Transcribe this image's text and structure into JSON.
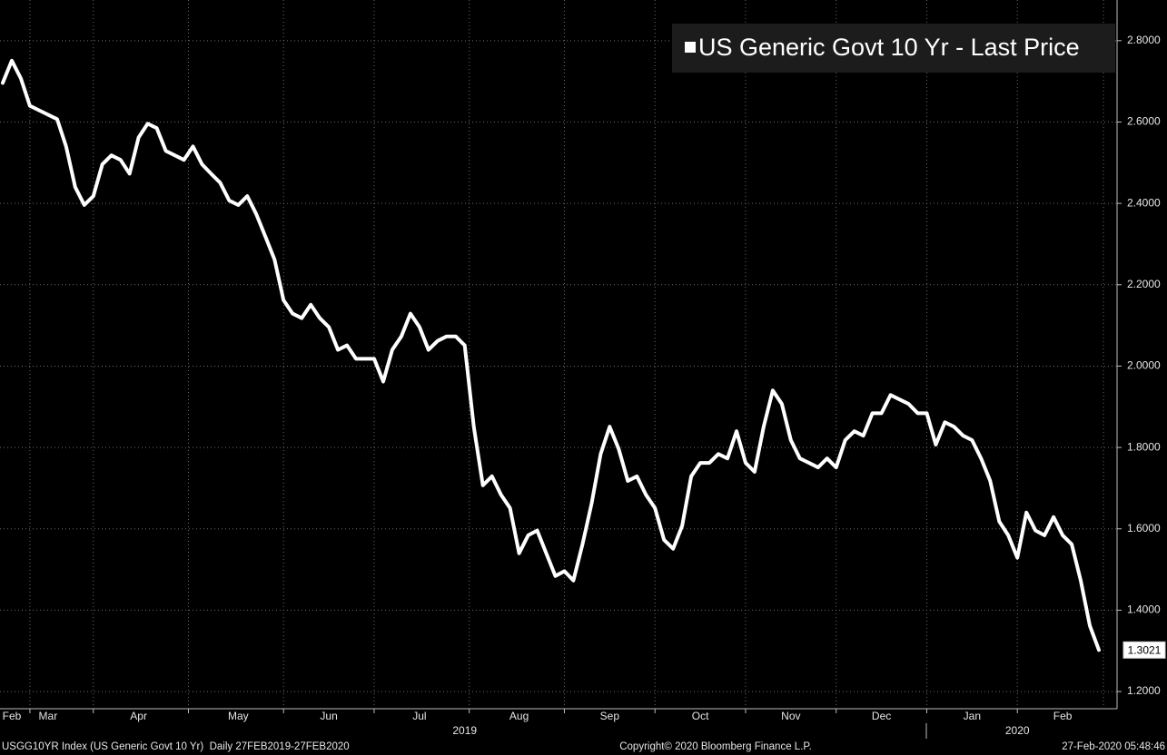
{
  "chart_data": {
    "type": "line",
    "series": [
      {
        "name": "US Generic Govt 10 Yr - Last Price",
        "color": "#ffffff",
        "values": [
          2.696,
          2.751,
          2.707,
          2.64,
          2.629,
          2.618,
          2.607,
          2.54,
          2.44,
          2.396,
          2.418,
          2.496,
          2.518,
          2.507,
          2.473,
          2.562,
          2.596,
          2.585,
          2.529,
          2.518,
          2.507,
          2.54,
          2.496,
          2.473,
          2.451,
          2.407,
          2.396,
          2.418,
          2.373,
          2.318,
          2.262,
          2.162,
          2.129,
          2.118,
          2.151,
          2.118,
          2.096,
          2.04,
          2.051,
          2.018,
          2.018,
          2.018,
          1.962,
          2.04,
          2.073,
          2.129,
          2.096,
          2.04,
          2.062,
          2.073,
          2.073,
          2.051,
          1.851,
          1.707,
          1.729,
          1.684,
          1.651,
          1.54,
          1.584,
          1.596,
          1.54,
          1.484,
          1.496,
          1.473,
          1.562,
          1.662,
          1.784,
          1.851,
          1.796,
          1.718,
          1.729,
          1.684,
          1.651,
          1.573,
          1.551,
          1.607,
          1.729,
          1.762,
          1.762,
          1.784,
          1.773,
          1.84,
          1.762,
          1.74,
          1.851,
          1.94,
          1.907,
          1.818,
          1.773,
          1.762,
          1.751,
          1.773,
          1.751,
          1.818,
          1.84,
          1.829,
          1.884,
          1.884,
          1.929,
          1.918,
          1.907,
          1.884,
          1.884,
          1.807,
          1.862,
          1.851,
          1.829,
          1.818,
          1.773,
          1.718,
          1.618,
          1.584,
          1.529,
          1.64,
          1.596,
          1.584,
          1.629,
          1.584,
          1.562,
          1.473,
          1.362,
          1.3021
        ]
      }
    ],
    "categories": [
      null,
      "Feb",
      null,
      null,
      null,
      "Mar",
      null,
      null,
      null,
      null,
      null,
      null,
      null,
      null,
      null,
      "Apr",
      null,
      null,
      null,
      null,
      null,
      null,
      null,
      null,
      null,
      null,
      "May",
      null,
      null,
      null,
      null,
      null,
      null,
      null,
      null,
      null,
      "Jun",
      null,
      null,
      null,
      null,
      null,
      null,
      null,
      null,
      null,
      "Jul",
      null,
      null,
      null,
      null,
      null,
      null,
      null,
      null,
      null,
      null,
      "Aug",
      null,
      null,
      null,
      null,
      null,
      null,
      null,
      null,
      null,
      "Sep",
      null,
      null,
      null,
      null,
      null,
      null,
      null,
      null,
      null,
      "Oct",
      null,
      null,
      null,
      null,
      null,
      null,
      null,
      null,
      null,
      "Nov",
      null,
      null,
      null,
      null,
      null,
      null,
      null,
      null,
      null,
      "Dec",
      null,
      null,
      null,
      null,
      null,
      null,
      null,
      null,
      null,
      "Jan",
      null,
      null,
      null,
      null,
      null,
      null,
      null,
      null,
      null,
      "Feb",
      null,
      null,
      null,
      null
    ],
    "year_categories": [
      null,
      null,
      null,
      null,
      null,
      null,
      null,
      null,
      null,
      null,
      null,
      null,
      null,
      null,
      null,
      null,
      null,
      null,
      null,
      null,
      null,
      null,
      null,
      null,
      null,
      null,
      null,
      null,
      null,
      null,
      null,
      null,
      null,
      null,
      null,
      null,
      null,
      null,
      null,
      null,
      null,
      null,
      null,
      null,
      null,
      null,
      null,
      null,
      null,
      null,
      null,
      "2019",
      null,
      null,
      null,
      null,
      null,
      null,
      null,
      null,
      null,
      null,
      null,
      null,
      null,
      null,
      null,
      null,
      null,
      null,
      null,
      null,
      null,
      null,
      null,
      null,
      null,
      null,
      null,
      null,
      null,
      null,
      null,
      null,
      null,
      null,
      null,
      null,
      null,
      null,
      null,
      null,
      null,
      null,
      null,
      null,
      null,
      null,
      null,
      null,
      null,
      null,
      null,
      null,
      null,
      null,
      null,
      null,
      null,
      null,
      null,
      null,
      "2020",
      null,
      null,
      null,
      null,
      null,
      null,
      null,
      null,
      null
    ],
    "ylim": [
      1.16,
      2.9
    ],
    "yticks": [
      {
        "value": 1.2,
        "label": "1.2000"
      },
      {
        "value": 1.4,
        "label": "1.4000"
      },
      {
        "value": 1.6,
        "label": "1.6000"
      },
      {
        "value": 1.8,
        "label": "1.8000"
      },
      {
        "value": 2.0,
        "label": "2.0000"
      },
      {
        "value": 2.2,
        "label": "2.2000"
      },
      {
        "value": 2.4,
        "label": "2.4000"
      },
      {
        "value": 2.6,
        "label": "2.6000"
      },
      {
        "value": 2.8,
        "label": "2.8000"
      }
    ],
    "grid": true,
    "legend": "top-right",
    "footer_left": "USGG10YR Index (US Generic Govt 10 Yr)  Daily 27FEB2019-27FEB2020",
    "footer_center": "Copyright© 2020 Bloomberg Finance L.P.",
    "footer_right": "27-Feb-2020 05:48:46"
  }
}
